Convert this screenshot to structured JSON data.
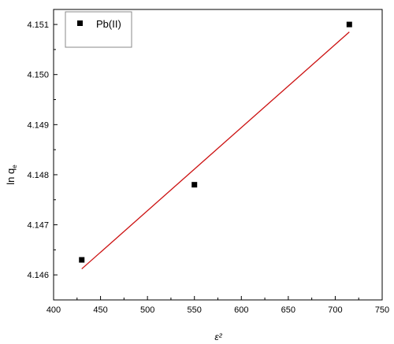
{
  "chart_data": {
    "type": "scatter",
    "xlabel": "ε²",
    "ylabel": "ln q",
    "ylabel_sub": "e",
    "xlim": [
      400,
      750
    ],
    "ylim": [
      4.1455,
      4.1513
    ],
    "x_ticks": [
      400,
      450,
      500,
      550,
      600,
      650,
      700,
      750
    ],
    "y_ticks": [
      "4.146",
      "4.147",
      "4.148",
      "4.149",
      "4.150",
      "4.151"
    ],
    "grid": false,
    "legend_position": "top-left",
    "series": [
      {
        "name": "Pb(II)",
        "marker": "square",
        "color": "#000000",
        "x": [
          430,
          550,
          715
        ],
        "y": [
          4.1463,
          4.1478,
          4.151
        ]
      }
    ],
    "fit_line": {
      "color": "#cc1111",
      "x": [
        430,
        715
      ],
      "y": [
        4.14612,
        4.15085
      ]
    }
  }
}
